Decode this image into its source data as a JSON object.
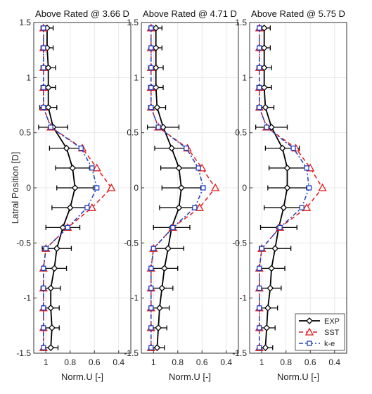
{
  "figure": {
    "ylabel": "Latral Position [D]",
    "legend_position": "bottom-right of third panel",
    "series_styles": [
      {
        "name": "EXP",
        "color": "#000000",
        "dash": "",
        "marker": "diamond"
      },
      {
        "name": "SST",
        "color": "#e41a1c",
        "dash": "6,4",
        "marker": "triangle"
      },
      {
        "name": "k-e",
        "color": "#1f3fbf",
        "dash": "6,3,2,3",
        "marker": "square"
      }
    ]
  },
  "chart_data": [
    {
      "type": "line",
      "title": "Above Rated @ 3.66 D",
      "xlabel": "Norm.U [-]",
      "xlim": [
        1.1,
        0.3
      ],
      "ylim": [
        -1.5,
        1.5
      ],
      "xticks": [
        1,
        0.8,
        0.6,
        0.4
      ],
      "xtick_labels": [
        "1",
        "0.8",
        "0.6",
        "0.4"
      ],
      "yticks": [
        -1.5,
        -1,
        -0.5,
        0,
        0.5,
        1,
        1.5
      ],
      "ytick_labels": [
        "-1.5",
        "-1",
        "-0.5",
        "0",
        "0.5",
        "1",
        "1.5"
      ],
      "grid": true,
      "series": [
        {
          "name": "EXP",
          "y": [
            1.45,
            1.27,
            1.09,
            0.91,
            0.73,
            0.55,
            0.36,
            0.18,
            0.0,
            -0.18,
            -0.36,
            -0.55,
            -0.73,
            -0.91,
            -1.09,
            -1.27,
            -1.45
          ],
          "x": [
            0.99,
            0.99,
            0.98,
            0.98,
            0.98,
            0.94,
            0.83,
            0.78,
            0.76,
            0.8,
            0.86,
            0.91,
            0.93,
            0.96,
            0.96,
            0.95,
            0.96
          ],
          "err": [
            0.05,
            0.05,
            0.06,
            0.06,
            0.07,
            0.12,
            0.14,
            0.14,
            0.15,
            0.15,
            0.14,
            0.12,
            0.1,
            0.08,
            0.07,
            0.06,
            0.06
          ]
        },
        {
          "name": "SST",
          "y": [
            1.45,
            1.27,
            1.09,
            0.91,
            0.73,
            0.55,
            0.36,
            0.18,
            0.0,
            -0.18,
            -0.36,
            -0.55,
            -0.73,
            -0.91,
            -1.09,
            -1.27,
            -1.45
          ],
          "x": [
            1.02,
            1.02,
            1.02,
            1.02,
            1.02,
            0.96,
            0.7,
            0.58,
            0.46,
            0.62,
            0.82,
            1.0,
            1.02,
            1.02,
            1.02,
            1.02,
            1.02
          ]
        },
        {
          "name": "k-e",
          "y": [
            1.45,
            1.27,
            1.09,
            0.91,
            0.73,
            0.55,
            0.36,
            0.18,
            0.0,
            -0.18,
            -0.36,
            -0.55,
            -0.73,
            -0.91,
            -1.09,
            -1.27,
            -1.45
          ],
          "x": [
            1.02,
            1.02,
            1.02,
            1.02,
            1.02,
            0.96,
            0.71,
            0.62,
            0.58,
            0.66,
            0.82,
            1.0,
            1.02,
            1.02,
            1.02,
            1.02,
            1.02
          ]
        }
      ]
    },
    {
      "type": "line",
      "title": "Above Rated @ 4.71 D",
      "xlabel": "Norm.U [-]",
      "xlim": [
        1.1,
        0.3
      ],
      "ylim": [
        -1.5,
        1.5
      ],
      "xticks": [
        1,
        0.8,
        0.6,
        0.4
      ],
      "xtick_labels": [
        "1",
        "0.8",
        "0.6",
        "0.4"
      ],
      "yticks": [
        -1.5,
        -1,
        -0.5,
        0,
        0.5,
        1,
        1.5
      ],
      "ytick_labels": [
        "-1.5",
        "-1",
        "-0.5",
        "0",
        "0.5",
        "1",
        "1.5"
      ],
      "grid": true,
      "series": [
        {
          "name": "EXP",
          "y": [
            1.45,
            1.27,
            1.09,
            0.91,
            0.73,
            0.55,
            0.36,
            0.18,
            0.0,
            -0.18,
            -0.36,
            -0.55,
            -0.73,
            -0.91,
            -1.09,
            -1.27,
            -1.45
          ],
          "x": [
            0.98,
            0.98,
            0.98,
            0.98,
            0.97,
            0.92,
            0.85,
            0.79,
            0.77,
            0.79,
            0.85,
            0.88,
            0.91,
            0.93,
            0.95,
            0.96,
            0.97
          ],
          "err": [
            0.05,
            0.05,
            0.06,
            0.06,
            0.07,
            0.13,
            0.14,
            0.15,
            0.16,
            0.16,
            0.15,
            0.13,
            0.11,
            0.09,
            0.08,
            0.07,
            0.06
          ]
        },
        {
          "name": "SST",
          "y": [
            1.45,
            1.27,
            1.09,
            0.91,
            0.73,
            0.55,
            0.36,
            0.18,
            0.0,
            -0.18,
            -0.36,
            -0.55,
            -0.73,
            -0.91,
            -1.09,
            -1.27,
            -1.45
          ],
          "x": [
            1.02,
            1.02,
            1.02,
            1.02,
            1.02,
            0.96,
            0.72,
            0.6,
            0.49,
            0.62,
            0.84,
            1.0,
            1.02,
            1.02,
            1.02,
            1.02,
            1.02
          ]
        },
        {
          "name": "k-e",
          "y": [
            1.45,
            1.27,
            1.09,
            0.91,
            0.73,
            0.55,
            0.36,
            0.18,
            0.0,
            -0.18,
            -0.36,
            -0.55,
            -0.73,
            -0.91,
            -1.09,
            -1.27,
            -1.45
          ],
          "x": [
            1.02,
            1.02,
            1.02,
            1.02,
            1.02,
            0.96,
            0.73,
            0.63,
            0.59,
            0.66,
            0.84,
            1.0,
            1.02,
            1.02,
            1.02,
            1.02,
            1.02
          ]
        }
      ]
    },
    {
      "type": "line",
      "title": "Above Rated @ 5.75 D",
      "xlabel": "Norm.U [-]",
      "xlim": [
        1.1,
        0.3
      ],
      "ylim": [
        -1.5,
        1.5
      ],
      "xticks": [
        1,
        0.8,
        0.6,
        0.4
      ],
      "xtick_labels": [
        "1",
        "0.8",
        "0.6",
        "0.4"
      ],
      "yticks": [
        -1.5,
        -1,
        -0.5,
        0,
        0.5,
        1,
        1.5
      ],
      "ytick_labels": [
        "-1.5",
        "-1",
        "-0.5",
        "0",
        "0.5",
        "1",
        "1.5"
      ],
      "grid": true,
      "legend": [
        "EXP",
        "SST",
        "k-e"
      ],
      "series": [
        {
          "name": "EXP",
          "y": [
            1.45,
            1.27,
            1.09,
            0.91,
            0.73,
            0.55,
            0.36,
            0.18,
            0.0,
            -0.18,
            -0.36,
            -0.55,
            -0.73,
            -0.91,
            -1.09,
            -1.27,
            -1.45
          ],
          "x": [
            0.98,
            0.98,
            0.98,
            0.98,
            0.97,
            0.92,
            0.83,
            0.79,
            0.79,
            0.82,
            0.86,
            0.89,
            0.92,
            0.93,
            0.95,
            0.96,
            0.97
          ],
          "err": [
            0.05,
            0.05,
            0.06,
            0.06,
            0.07,
            0.13,
            0.14,
            0.15,
            0.16,
            0.16,
            0.15,
            0.13,
            0.11,
            0.09,
            0.08,
            0.07,
            0.06
          ]
        },
        {
          "name": "SST",
          "y": [
            1.45,
            1.27,
            1.09,
            0.91,
            0.73,
            0.55,
            0.36,
            0.18,
            0.0,
            -0.18,
            -0.36,
            -0.55,
            -0.73,
            -0.91,
            -1.09,
            -1.27,
            -1.45
          ],
          "x": [
            1.02,
            1.02,
            1.02,
            1.02,
            1.02,
            0.96,
            0.72,
            0.6,
            0.5,
            0.63,
            0.85,
            1.0,
            1.02,
            1.02,
            1.02,
            1.02,
            1.02
          ]
        },
        {
          "name": "k-e",
          "y": [
            1.45,
            1.27,
            1.09,
            0.91,
            0.73,
            0.55,
            0.36,
            0.18,
            0.0,
            -0.18,
            -0.36,
            -0.55,
            -0.73,
            -0.91,
            -1.09,
            -1.27,
            -1.45
          ],
          "x": [
            1.02,
            1.02,
            1.02,
            1.02,
            1.02,
            0.96,
            0.74,
            0.63,
            0.61,
            0.67,
            0.85,
            1.0,
            1.02,
            1.02,
            1.02,
            1.02,
            1.02
          ]
        }
      ]
    }
  ]
}
